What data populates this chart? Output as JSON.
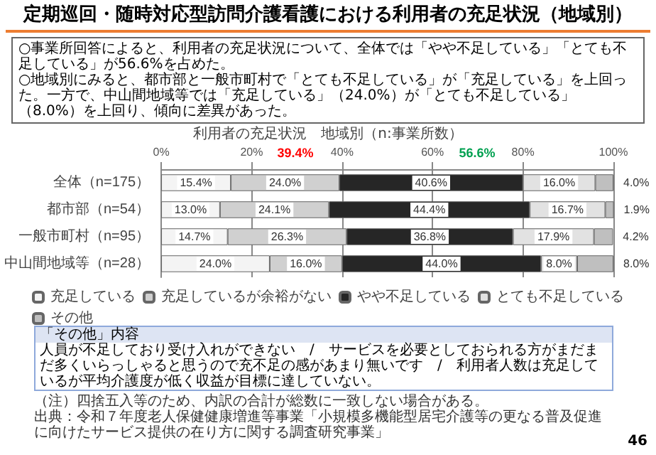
{
  "chart_data": {
    "type": "bar",
    "orientation": "horizontal",
    "stacked": true,
    "title": "定期巡回・随時対応型訪問介護看護における利用者の充足状況（地域別）",
    "subtitle": "○事業所回答によると、利用者の充足状況について、全体では「やや不足している」「とても不足している」が56.6%を占めた。\n○地域別にみると、都市部と一般市町村で「とても不足している」が「充足している」を上回った。一方で、中山間地域等では「充足している」（24.0%）が「とても不足している」（8.0%）を上回り、傾向に差異があった。",
    "categories": [
      "全体（n=175）",
      "都市部（n=54）",
      "一般市町村（n=95）",
      "中山間地域等（n=28）"
    ],
    "series": [
      {
        "name": "充足している",
        "color": "#f4f4f4",
        "values": [
          15.4,
          13.0,
          14.7,
          24.0
        ],
        "value_labels": [
          "15.4%",
          "13.0%",
          "14.7%",
          "24.0%"
        ]
      },
      {
        "name": "充足しているが余裕がない",
        "color": "#d0d0d0",
        "values": [
          24.0,
          24.1,
          26.3,
          16.0
        ],
        "value_labels": [
          "24.0%",
          "24.1%",
          "26.3%",
          "16.0%"
        ]
      },
      {
        "name": "やや不足している",
        "color": "#262626",
        "values": [
          40.6,
          44.4,
          36.8,
          44.0
        ],
        "value_labels": [
          "40.6%",
          "44.4%",
          "36.8%",
          "44.0%"
        ]
      },
      {
        "name": "とても不足している",
        "color": "#e2e2e2",
        "values": [
          16.0,
          16.7,
          17.9,
          8.0
        ],
        "value_labels": [
          "16.0%",
          "16.7%",
          "17.9%",
          "8.0%"
        ]
      },
      {
        "name": "その他",
        "color": "#bfbfbf",
        "values": [
          4.0,
          1.9,
          4.2,
          8.0
        ],
        "value_labels": [
          "4.0%",
          "1.9%",
          "4.2%",
          "8.0%"
        ]
      }
    ],
    "xlim": [
      0,
      100
    ],
    "xticks": [
      {
        "value": 0,
        "label": "0%"
      },
      {
        "value": 20,
        "label": "20%"
      },
      {
        "value": 40,
        "label": "40%"
      },
      {
        "value": 60,
        "label": "60%"
      },
      {
        "value": 80,
        "label": "80%"
      },
      {
        "value": 100,
        "label": "100%"
      }
    ],
    "grid": "x",
    "legend": "bottom",
    "annotations": [
      "利用者の充足状況　地域別（n:事業所数）",
      "39.4%",
      "56.6%",
      "「その他」内容",
      "人員が不足しており受け入れができない　/　サービスを必要としておられる方がまだまだ多くいらっしゃると思うので充不足の感があまり無いです　/　利用者人数は充足しているが平均介護度が低く収益が目標に達していない。",
      "（注）四捨五入等のため、内訳の合計が総数に一致しない場合がある。",
      "出典：令和７年度老人保健健康増進等事業「小規模多機能型居宅介護等の更なる普及促進に向けたサービス提供の在り方に関する調査研究事業」",
      "46"
    ]
  }
}
